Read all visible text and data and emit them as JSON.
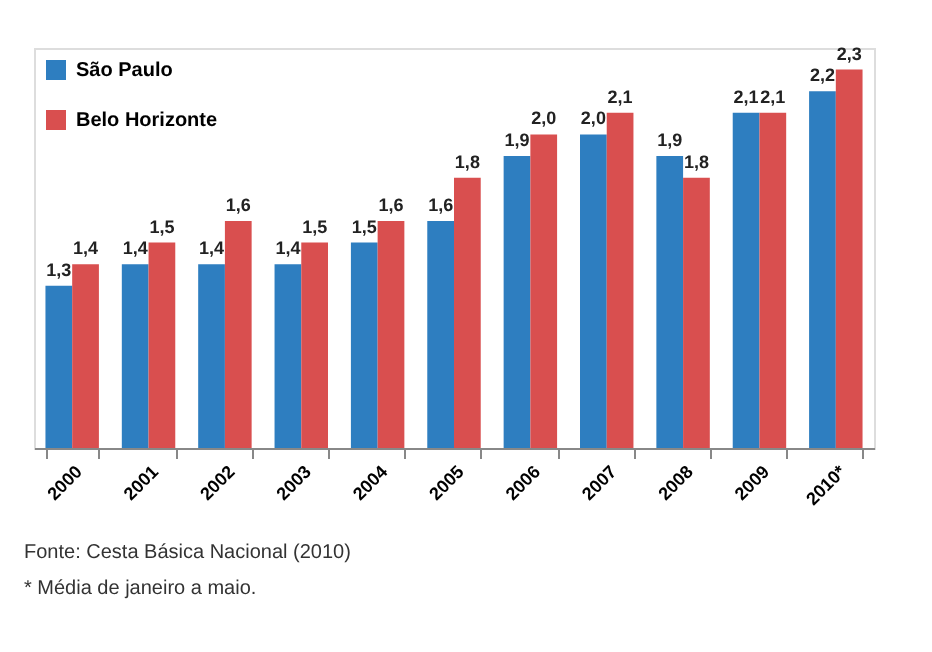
{
  "chart_data": {
    "type": "bar",
    "categories": [
      "2000",
      "2001",
      "2002",
      "2003",
      "2004",
      "2005",
      "2006",
      "2007",
      "2008",
      "2009",
      "2010*"
    ],
    "series": [
      {
        "name": "São Paulo",
        "color": "#2e7ec0",
        "values": [
          1.3,
          1.4,
          1.4,
          1.4,
          1.5,
          1.6,
          1.9,
          2.0,
          1.9,
          2.1,
          2.2
        ],
        "value_labels": [
          "1,3",
          "1,4",
          "1,4",
          "1,4",
          "1,5",
          "1,6",
          "1,9",
          "2,0",
          "1,9",
          "2,1",
          "2,2"
        ]
      },
      {
        "name": "Belo Horizonte",
        "color": "#d94f4f",
        "values": [
          1.4,
          1.5,
          1.6,
          1.5,
          1.6,
          1.8,
          2.0,
          2.1,
          1.8,
          2.1,
          2.3
        ],
        "value_labels": [
          "1,4",
          "1,5",
          "1,6",
          "1,5",
          "1,6",
          "1,8",
          "2,0",
          "2,1",
          "1,8",
          "2,1",
          "2,3"
        ]
      }
    ],
    "ylim": [
      0.55,
      2.4
    ],
    "tick_labels": "x",
    "legend": "top left",
    "grid": false,
    "annotations": [
      "Fonte: Cesta Básica Nacional (2010)",
      "* Média de janeiro a maio."
    ]
  }
}
